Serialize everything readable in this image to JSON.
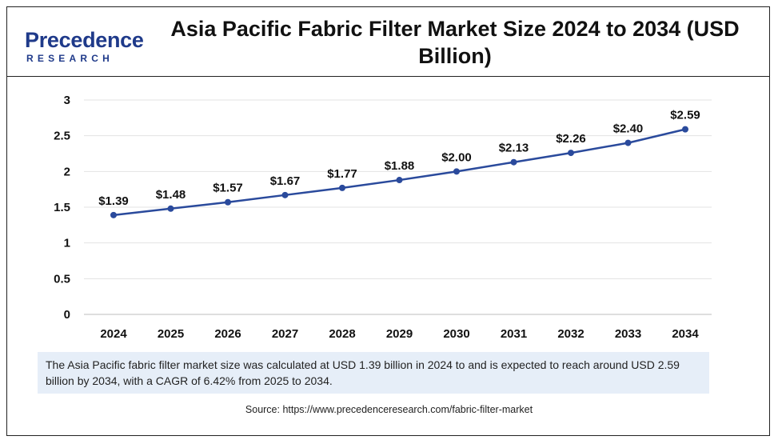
{
  "logo": {
    "word": "Precedence",
    "sub": "RESEARCH"
  },
  "title": "Asia Pacific Fabric Filter Market Size 2024 to 2034 (USD Billion)",
  "colors": {
    "line": "#2a4a9c",
    "grid": "#e3e3e3",
    "brand": "#1f3a8a",
    "note_bg": "#e6eef8"
  },
  "chart_data": {
    "type": "line",
    "title": "Asia Pacific Fabric Filter Market Size 2024 to 2034 (USD Billion)",
    "xlabel": "",
    "ylabel": "",
    "categories": [
      "2024",
      "2025",
      "2026",
      "2027",
      "2028",
      "2029",
      "2030",
      "2031",
      "2032",
      "2033",
      "2034"
    ],
    "values": [
      1.39,
      1.48,
      1.57,
      1.67,
      1.77,
      1.88,
      2.0,
      2.13,
      2.26,
      2.4,
      2.59
    ],
    "data_labels": [
      "$1.39",
      "$1.48",
      "$1.57",
      "$1.67",
      "$1.77",
      "$1.88",
      "$2.00",
      "$2.13",
      "$2.26",
      "$2.40",
      "$2.59"
    ],
    "ylim": [
      0,
      3
    ],
    "yticks": [
      0,
      0.5,
      1,
      1.5,
      2,
      2.5,
      3
    ],
    "ytick_labels": [
      "0",
      "0.5",
      "1",
      "1.5",
      "2",
      "2.5",
      "3"
    ],
    "grid": true,
    "legend": "none"
  },
  "note": "The Asia Pacific fabric filter market size was calculated at USD 1.39 billion in 2024 to and is expected to reach around USD 2.59 billion by 2034, with a CAGR of 6.42% from 2025 to 2034.",
  "source": "Source: https://www.precedenceresearch.com/fabric-filter-market"
}
